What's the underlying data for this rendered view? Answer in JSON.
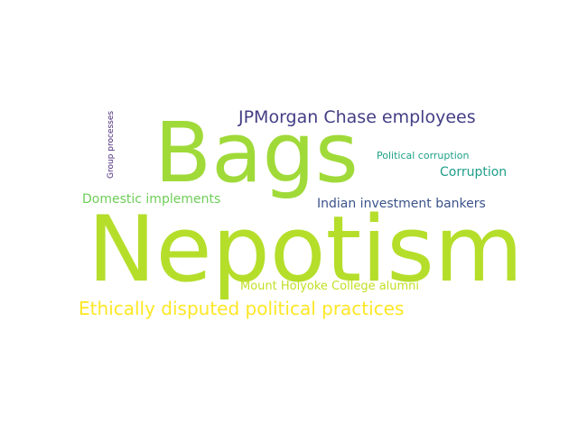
{
  "words": {
    "nepotism": {
      "text": "Nepotism",
      "color": "#b5de2b"
    },
    "bags": {
      "text": "Bags",
      "color": "#a0da39"
    },
    "jpmorgan": {
      "text": "JPMorgan Chase employees",
      "color": "#433e85"
    },
    "ethics": {
      "text": "Ethically disputed political practices",
      "color": "#fde725"
    },
    "domestic": {
      "text": "Domestic implements",
      "color": "#6ece58"
    },
    "indian": {
      "text": "Indian investment bankers",
      "color": "#3b528b"
    },
    "mount_holyoke": {
      "text": "Mount Holyoke College alumni",
      "color": "#c2df23"
    },
    "corruption": {
      "text": "Corruption",
      "color": "#1f9e89"
    },
    "political_corruption": {
      "text": "Political corruption",
      "color": "#1fa188"
    },
    "group_processes": {
      "text": "Group processes",
      "color": "#482878"
    }
  }
}
